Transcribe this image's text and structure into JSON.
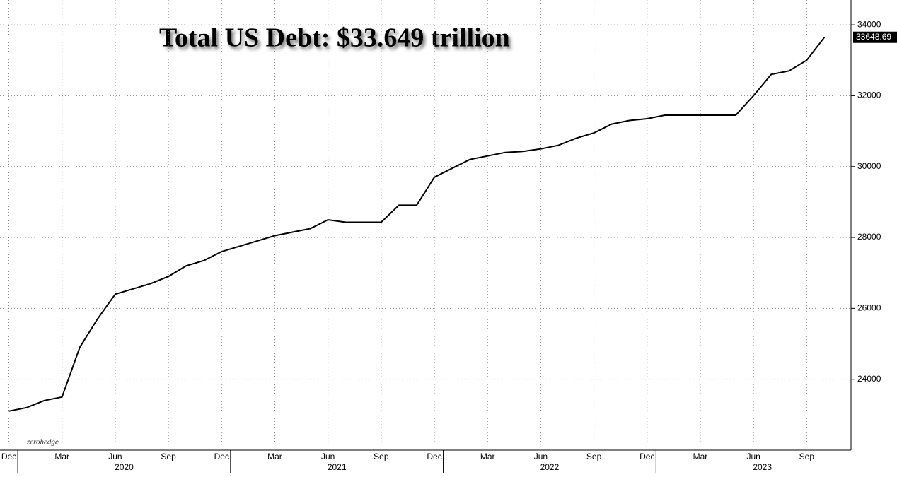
{
  "chart_data": {
    "type": "line",
    "title": "Total US Debt: $33.649 trillion",
    "watermark": "zerohedge",
    "x": [
      "2019-12",
      "2020-01",
      "2020-02",
      "2020-03",
      "2020-04",
      "2020-05",
      "2020-06",
      "2020-07",
      "2020-08",
      "2020-09",
      "2020-10",
      "2020-11",
      "2020-12",
      "2021-01",
      "2021-02",
      "2021-03",
      "2021-04",
      "2021-05",
      "2021-06",
      "2021-07",
      "2021-08",
      "2021-09",
      "2021-10",
      "2021-11",
      "2021-12",
      "2022-01",
      "2022-02",
      "2022-03",
      "2022-04",
      "2022-05",
      "2022-06",
      "2022-07",
      "2022-08",
      "2022-09",
      "2022-10",
      "2022-11",
      "2022-12",
      "2023-01",
      "2023-02",
      "2023-03",
      "2023-04",
      "2023-05",
      "2023-06",
      "2023-07",
      "2023-08",
      "2023-09",
      "2023-10"
    ],
    "series": [
      {
        "name": "Total US Debt",
        "color": "#000000",
        "values": [
          23100,
          23200,
          23400,
          23500,
          24900,
          25700,
          26400,
          26550,
          26700,
          26900,
          27200,
          27350,
          27600,
          27750,
          27900,
          28050,
          28150,
          28250,
          28500,
          28430,
          28430,
          28430,
          28910,
          28910,
          29700,
          29950,
          30200,
          30300,
          30400,
          30430,
          30500,
          30600,
          30800,
          30950,
          31200,
          31300,
          31350,
          31450,
          31450,
          31450,
          31450,
          31450,
          32000,
          32600,
          32700,
          33000,
          33648.69
        ]
      }
    ],
    "last_value_label": "33648.69",
    "xlim": [
      "2019-12",
      "2023-11"
    ],
    "xticks": [
      {
        "value": "2019-12",
        "label": "Dec"
      },
      {
        "value": "2020-03",
        "label": "Mar"
      },
      {
        "value": "2020-06",
        "label": "Jun"
      },
      {
        "value": "2020-09",
        "label": "Sep"
      },
      {
        "value": "2020-12",
        "label": "Dec"
      },
      {
        "value": "2021-03",
        "label": "Mar"
      },
      {
        "value": "2021-06",
        "label": "Jun"
      },
      {
        "value": "2021-09",
        "label": "Sep"
      },
      {
        "value": "2021-12",
        "label": "Dec"
      },
      {
        "value": "2022-03",
        "label": "Mar"
      },
      {
        "value": "2022-06",
        "label": "Jun"
      },
      {
        "value": "2022-09",
        "label": "Sep"
      },
      {
        "value": "2022-12",
        "label": "Dec"
      },
      {
        "value": "2023-03",
        "label": "Mar"
      },
      {
        "value": "2023-06",
        "label": "Jun"
      },
      {
        "value": "2023-09",
        "label": "Sep"
      }
    ],
    "years": [
      "2020",
      "2021",
      "2022",
      "2023"
    ],
    "ylim": [
      22000,
      34700
    ],
    "yticks": [
      24000,
      26000,
      28000,
      30000,
      32000,
      34000
    ],
    "grid": true
  }
}
